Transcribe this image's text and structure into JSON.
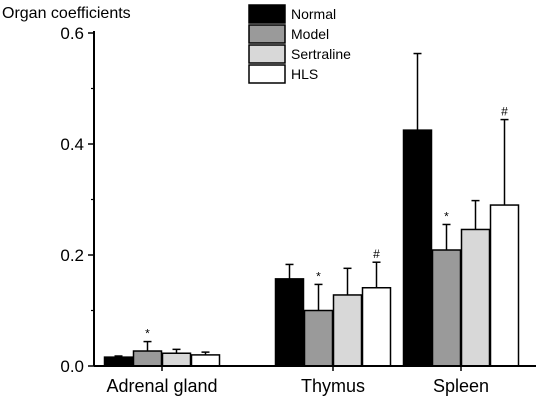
{
  "chart_data": {
    "type": "bar",
    "title": "",
    "ylabel": "Organ coefficients",
    "xlabel": "",
    "ylim": [
      0,
      0.6
    ],
    "yticks": [
      0.0,
      0.2,
      0.4,
      0.6
    ],
    "ytick_labels": [
      "0.0",
      "0.2",
      "0.4",
      "0.6"
    ],
    "categories": [
      "Adrenal gland",
      "Thymus",
      "Spleen"
    ],
    "legend_position": "top-center",
    "grid": false,
    "series": [
      {
        "name": "Normal",
        "color": "#000000",
        "values": [
          0.016,
          0.157,
          0.425
        ],
        "errors": [
          0.002,
          0.026,
          0.138
        ],
        "annotations": [
          "",
          "",
          ""
        ]
      },
      {
        "name": "Model",
        "color": "#9a9a9a",
        "values": [
          0.027,
          0.1,
          0.209
        ],
        "errors": [
          0.017,
          0.047,
          0.046
        ],
        "annotations": [
          "*",
          "*",
          "*"
        ]
      },
      {
        "name": "Sertraline",
        "color": "#d8d8d8",
        "values": [
          0.023,
          0.128,
          0.246
        ],
        "errors": [
          0.007,
          0.048,
          0.052
        ],
        "annotations": [
          "",
          "",
          ""
        ]
      },
      {
        "name": "HLS",
        "color": "#ffffff",
        "values": [
          0.02,
          0.141,
          0.29
        ],
        "errors": [
          0.005,
          0.046,
          0.154
        ],
        "annotations": [
          "",
          "#",
          "#"
        ]
      }
    ]
  }
}
